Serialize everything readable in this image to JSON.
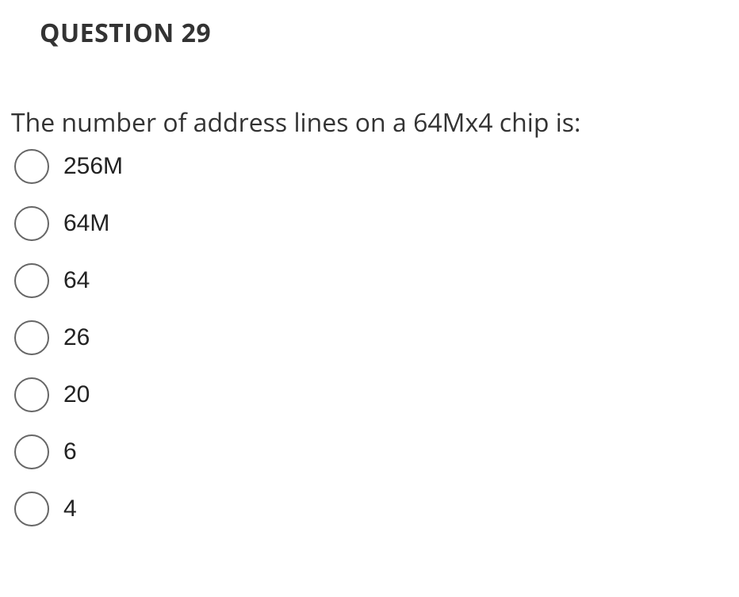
{
  "question": {
    "title": "QUESTION 29",
    "text": "The number of address lines on a 64Mx4 chip is:",
    "options": [
      {
        "label": "256M"
      },
      {
        "label": "64M"
      },
      {
        "label": "64"
      },
      {
        "label": "26"
      },
      {
        "label": "20"
      },
      {
        "label": "6"
      },
      {
        "label": "4"
      }
    ]
  },
  "styling": {
    "background_color": "#ffffff",
    "title_color": "#333333",
    "title_fontsize": 32,
    "title_fontweight": 700,
    "question_text_color": "#333333",
    "question_text_fontsize": 32,
    "option_label_color": "#222222",
    "option_label_fontsize": 30,
    "radio_border_color": "#666666",
    "radio_size": 44,
    "option_gap": 28
  }
}
